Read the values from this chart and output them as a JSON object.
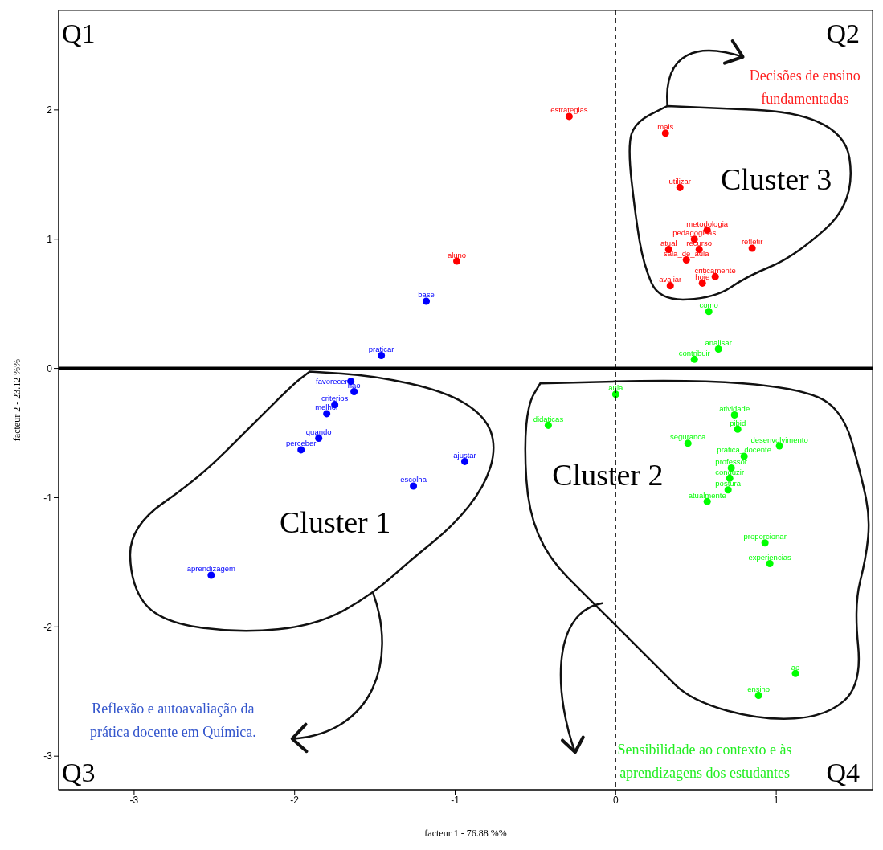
{
  "chart_data": {
    "type": "scatter",
    "marker": "circle",
    "xlabel": "facteur 1 - 76.88 %%",
    "ylabel": "facteur 2 - 23.12 %%",
    "xlim": [
      -3.47,
      1.6
    ],
    "ylim": [
      -3.26,
      2.77
    ],
    "xticks": [
      -3,
      -2,
      -1,
      0,
      1
    ],
    "yticks": [
      -3,
      -2,
      -1,
      0,
      1,
      2
    ],
    "grid": false,
    "legend": false,
    "ref_lines": [
      {
        "axis": "x",
        "value": 0,
        "line_style": "dashed",
        "color": "#000000"
      },
      {
        "axis": "y",
        "value": 0,
        "line_style": "solid",
        "color": "#000000"
      }
    ],
    "series": [
      {
        "color": "#ff0000",
        "x": [
          -0.29,
          0.31,
          0.4,
          0.57,
          0.49,
          0.33,
          0.52,
          0.85,
          0.44,
          0.62,
          0.54,
          0.34,
          -0.99
        ],
        "values": [
          1.95,
          1.82,
          1.4,
          1.07,
          1.0,
          0.92,
          0.92,
          0.93,
          0.84,
          0.71,
          0.66,
          0.64,
          0.83
        ],
        "value_labels": [
          "estrategias",
          "mais",
          "utilizar",
          "metodologia",
          "pedagogicas",
          "atual",
          "recurso",
          "refletir",
          "sala_de_aula",
          "criticamente",
          "hoje",
          "avaliar",
          "aluno"
        ]
      },
      {
        "color": "#0000ff",
        "x": [
          -1.18,
          -1.46,
          -1.65,
          -1.63,
          -1.75,
          -1.8,
          -1.85,
          -1.96,
          -0.94,
          -1.26,
          -2.52
        ],
        "values": [
          0.52,
          0.1,
          -0.1,
          -0.18,
          -0.28,
          -0.35,
          -0.54,
          -0.63,
          -0.72,
          -0.91,
          -1.6
        ],
        "value_labels": [
          "base",
          "praticar",
          "favorecer",
          "nao",
          "criterios",
          "melhor",
          "quando",
          "perceber",
          "ajustar",
          "escolha",
          "aprendizagem"
        ]
      },
      {
        "color": "#00ff00",
        "x": [
          0.58,
          0.64,
          0.49,
          0.0,
          -0.42,
          0.74,
          0.76,
          0.45,
          1.02,
          0.8,
          0.72,
          0.71,
          0.7,
          0.57,
          0.93,
          0.96,
          1.12,
          0.89
        ],
        "values": [
          0.44,
          0.15,
          0.07,
          -0.2,
          -0.44,
          -0.36,
          -0.47,
          -0.58,
          -0.6,
          -0.68,
          -0.77,
          -0.85,
          -0.94,
          -1.03,
          -1.35,
          -1.51,
          -2.36,
          -2.53
        ],
        "value_labels": [
          "como",
          "analisar",
          "contribuir",
          "aula",
          "didaticas",
          "atividade",
          "pibid",
          "seguranca",
          "desenvolvimento",
          "pratica_docente",
          "professor",
          "conduzir",
          "postura",
          "atualmente",
          "proporcionar",
          "experiencias",
          "ao",
          "ensino"
        ]
      }
    ],
    "annotations": [
      "Q1",
      "Q2",
      "Q3",
      "Q4",
      "Cluster 3",
      "Cluster 2",
      "Cluster 1",
      "Decisões de ensino\nfundamentadas",
      "Reflexão e autoavaliação da\nprática docente em Química.",
      "Sensibilidade ao contexto e às\naprendizagens dos estudantes"
    ]
  }
}
